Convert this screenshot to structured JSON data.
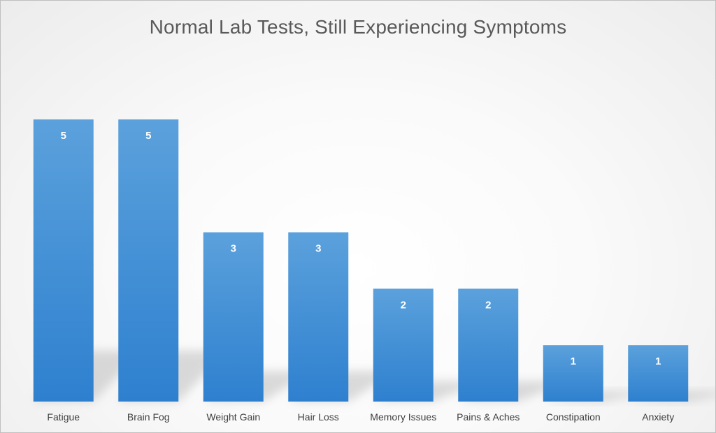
{
  "chart_data": {
    "type": "bar",
    "title": "Normal Lab Tests, Still Experiencing Symptoms",
    "xlabel": "",
    "ylabel": "",
    "categories": [
      "Fatigue",
      "Brain Fog",
      "Weight Gain",
      "Hair Loss",
      "Memory Issues",
      "Pains & Aches",
      "Constipation",
      "Anxiety"
    ],
    "values": [
      5,
      5,
      3,
      3,
      2,
      2,
      1,
      1
    ],
    "ylim": [
      0,
      5
    ],
    "grid": false,
    "legend": "none",
    "data_labels": true,
    "bar_color": "#4a90d2",
    "bar_color_light": "#5aa0dc",
    "bar_color_dark": "#2e80cf"
  }
}
